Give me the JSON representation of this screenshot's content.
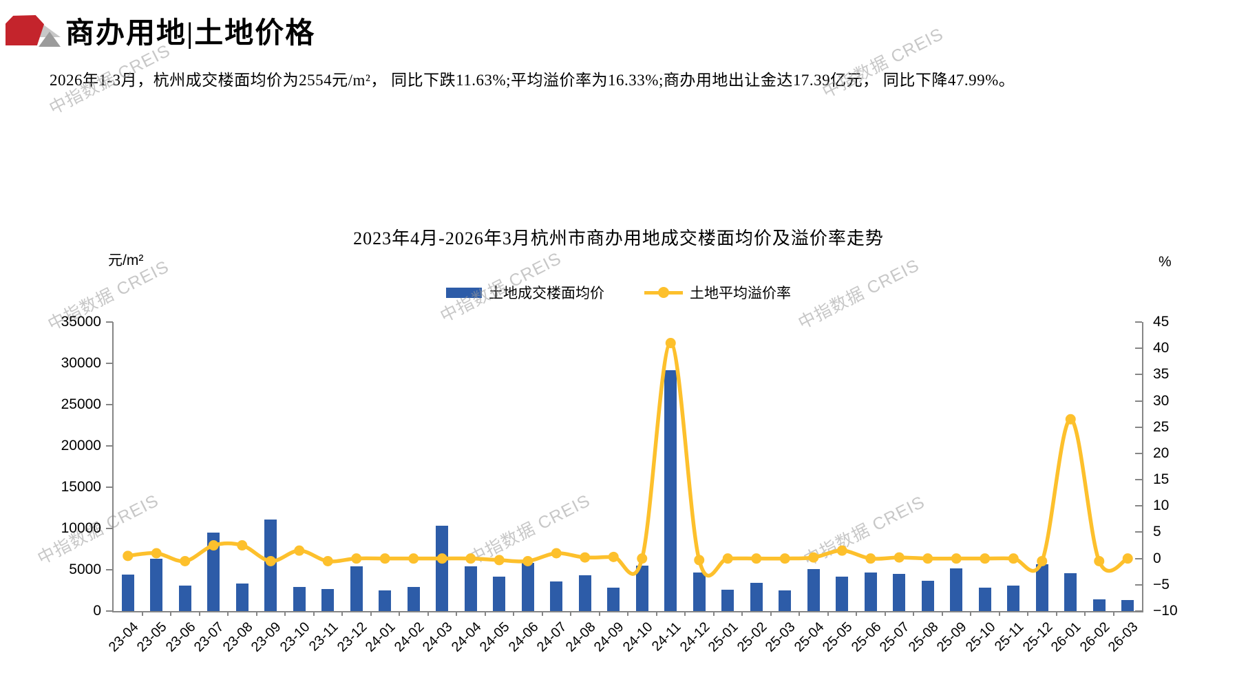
{
  "header": {
    "title": "商办用地|土地价格"
  },
  "summary": "2026年1-3月，杭州成交楼面均价为2554元/m²， 同比下跌11.63%;平均溢价率为16.33%;商办用地出让金达17.39亿元， 同比下降47.99%。",
  "watermark": {
    "text": "中指数据 CREIS"
  },
  "chart_data": {
    "type": "bar+line combo",
    "title": "2023年4月-2026年3月杭州市商办用地成交楼面均价及溢价率走势",
    "categories": [
      "23-04",
      "23-05",
      "23-06",
      "23-07",
      "23-08",
      "23-09",
      "23-10",
      "23-11",
      "23-12",
      "24-01",
      "24-02",
      "24-03",
      "24-04",
      "24-05",
      "24-06",
      "24-07",
      "24-08",
      "24-09",
      "24-10",
      "24-11",
      "24-12",
      "25-01",
      "25-02",
      "25-03",
      "25-04",
      "25-05",
      "25-06",
      "25-07",
      "25-08",
      "25-09",
      "25-10",
      "25-11",
      "25-12",
      "26-01",
      "26-02",
      "26-03"
    ],
    "series": [
      {
        "name": "土地成交楼面均价",
        "type": "bar",
        "axis": "left",
        "color": "#2d5ca8",
        "values": [
          4400,
          6300,
          3100,
          9500,
          3300,
          11100,
          2900,
          2700,
          5400,
          2500,
          2900,
          10300,
          5400,
          4200,
          5800,
          3600,
          4300,
          2800,
          5500,
          29200,
          4700,
          2600,
          3400,
          2500,
          5100,
          4200,
          4700,
          4500,
          3700,
          5200,
          2800,
          3100,
          5700,
          4600,
          1400,
          1300
        ]
      },
      {
        "name": "土地平均溢价率",
        "type": "line",
        "axis": "right",
        "color": "#fdc02c",
        "values": [
          0.5,
          1.0,
          -0.5,
          2.5,
          2.5,
          -0.5,
          1.5,
          -0.5,
          0,
          0,
          0,
          0,
          0,
          -0.3,
          -0.5,
          1.0,
          0.2,
          0.3,
          0,
          41,
          -0.3,
          0,
          0,
          0,
          0.2,
          1.5,
          0,
          0.2,
          0,
          0,
          0,
          0,
          -0.5,
          26.5,
          -0.5,
          0
        ]
      }
    ],
    "left_axis": {
      "unit": "元/m²",
      "min": 0,
      "max": 35000,
      "step": 5000,
      "ticks": [
        "0",
        "5000",
        "10000",
        "15000",
        "20000",
        "25000",
        "30000",
        "35000"
      ]
    },
    "right_axis": {
      "unit": "%",
      "min": -10,
      "max": 45,
      "step": 5,
      "ticks": [
        "-10",
        "-5",
        "0",
        "5",
        "10",
        "15",
        "20",
        "25",
        "30",
        "35",
        "40",
        "45"
      ]
    },
    "legend_position": "top-center",
    "grid": false
  }
}
